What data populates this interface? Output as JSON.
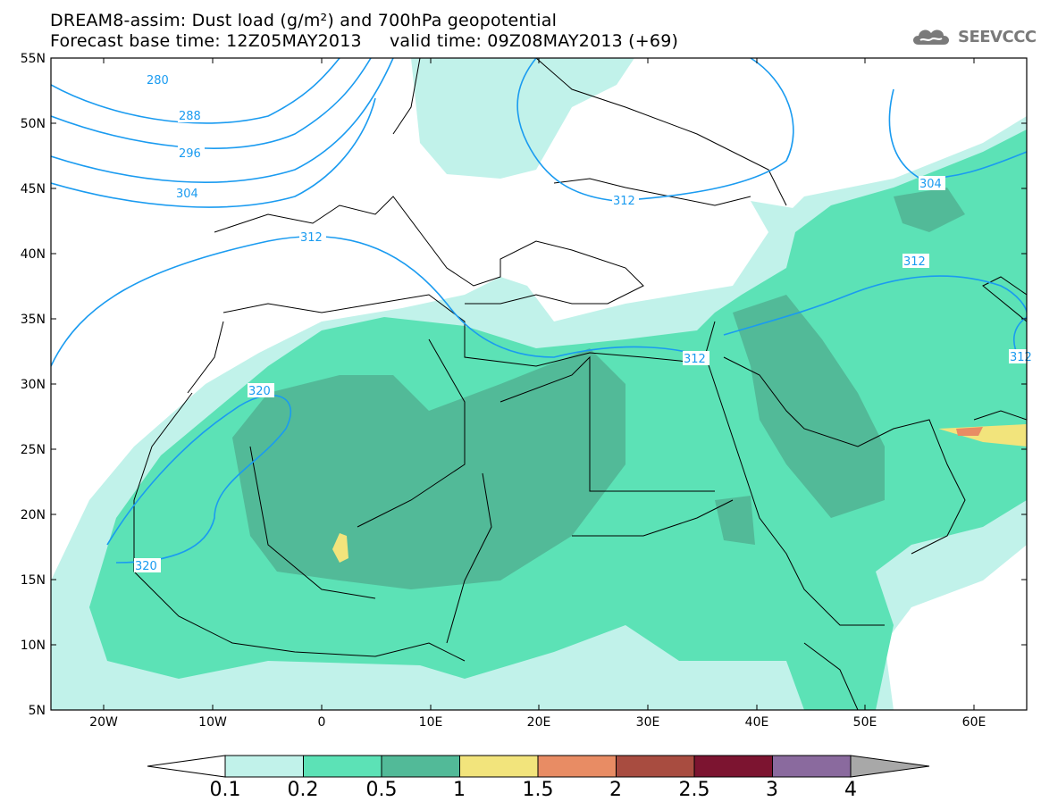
{
  "title": {
    "line1": "DREAM8-assim: Dust load (g/m²) and 700hPa geopotential",
    "line2": "Forecast base time: 12Z05MAY2013     valid time: 09Z08MAY2013 (+69)"
  },
  "logo": {
    "text": "SEEVCCC",
    "icon": "cloud-icon"
  },
  "axes": {
    "lat_labels": [
      "55N",
      "50N",
      "45N",
      "40N",
      "35N",
      "30N",
      "25N",
      "20N",
      "15N",
      "10N",
      "5N"
    ],
    "lon_labels": [
      "20W",
      "10W",
      "0",
      "10E",
      "20E",
      "30E",
      "40E",
      "50E",
      "60E"
    ]
  },
  "contours": {
    "labels": [
      "280",
      "288",
      "296",
      "304",
      "312",
      "320",
      "320",
      "312",
      "312",
      "304",
      "312",
      "312"
    ]
  },
  "colorbar": {
    "labels": [
      "0.1",
      "0.2",
      "0.5",
      "1",
      "1.5",
      "2",
      "2.5",
      "3",
      "4"
    ],
    "colors": [
      "#ffffff",
      "#c1f2ea",
      "#5ce2b6",
      "#52ba98",
      "#f2e47c",
      "#e88c64",
      "#a84c40",
      "#7c1430",
      "#8a6a9e",
      "#a8a8a8"
    ]
  },
  "colors": {
    "dust_low": "#c1f2ea",
    "dust_mid": "#5ce2b6",
    "dust_high": "#52ba98",
    "dust_1": "#f2e47c",
    "dust_15": "#e88c64",
    "contour_line": "#1a9bf0"
  }
}
